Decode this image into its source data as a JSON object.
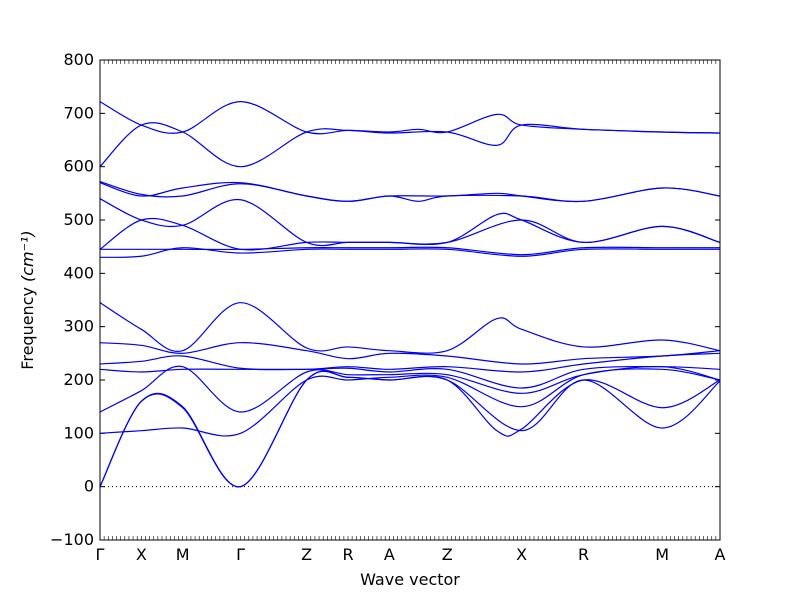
{
  "chart_data": {
    "type": "line",
    "title": "",
    "xlabel": "Wave vector",
    "ylabel": "Frequency",
    "ylabel_unit": "(cm⁻¹)",
    "ylim": [
      -100,
      800
    ],
    "yticks": [
      "−100",
      "0",
      "100",
      "200",
      "300",
      "400",
      "500",
      "600",
      "700",
      "800"
    ],
    "x_path": [
      {
        "label": "Γ",
        "x": 0
      },
      {
        "label": "X",
        "x": 0.5
      },
      {
        "label": "M",
        "x": 1.0
      },
      {
        "label": "Γ",
        "x": 1.7
      },
      {
        "label": "Z",
        "x": 2.5
      },
      {
        "label": "R",
        "x": 3.0
      },
      {
        "label": "A",
        "x": 3.5
      },
      {
        "label": "Z",
        "x": 4.2
      },
      {
        "label": "X",
        "x": 5.1
      },
      {
        "label": "R",
        "x": 5.85
      },
      {
        "label": "M",
        "x": 6.8
      },
      {
        "label": "A",
        "x": 7.5
      }
    ],
    "zero_line": true,
    "band_color": "#0000ee",
    "series": [
      {
        "values": [
          [
            0,
            0
          ],
          [
            0.5,
            160
          ],
          [
            1.0,
            148
          ],
          [
            1.7,
            0
          ],
          [
            2.5,
            200
          ],
          [
            3.0,
            205
          ],
          [
            3.5,
            200
          ],
          [
            4.2,
            200
          ],
          [
            5.1,
            105
          ],
          [
            5.85,
            200
          ],
          [
            6.8,
            110
          ],
          [
            7.5,
            198
          ]
        ]
      },
      {
        "values": [
          [
            0,
            0
          ],
          [
            0.5,
            160
          ],
          [
            1.0,
            150
          ],
          [
            1.7,
            0
          ],
          [
            2.5,
            200
          ],
          [
            3.0,
            205
          ],
          [
            3.5,
            200
          ],
          [
            4.2,
            200
          ],
          [
            4.8,
            105
          ],
          [
            5.1,
            108
          ],
          [
            5.85,
            200
          ],
          [
            6.8,
            148
          ],
          [
            7.5,
            200
          ]
        ]
      },
      {
        "values": [
          [
            0,
            100
          ],
          [
            0.5,
            105
          ],
          [
            1.0,
            110
          ],
          [
            1.7,
            100
          ],
          [
            2.5,
            200
          ],
          [
            3.0,
            200
          ],
          [
            3.5,
            205
          ],
          [
            4.2,
            205
          ],
          [
            5.1,
            150
          ],
          [
            5.85,
            210
          ],
          [
            6.8,
            220
          ],
          [
            7.5,
            200
          ]
        ]
      },
      {
        "values": [
          [
            0,
            140
          ],
          [
            0.5,
            180
          ],
          [
            1.0,
            225
          ],
          [
            1.7,
            140
          ],
          [
            2.5,
            215
          ],
          [
            3.0,
            210
          ],
          [
            3.5,
            210
          ],
          [
            4.2,
            210
          ],
          [
            5.1,
            175
          ],
          [
            5.85,
            210
          ],
          [
            6.8,
            225
          ],
          [
            7.5,
            200
          ]
        ]
      },
      {
        "values": [
          [
            0,
            220
          ],
          [
            0.5,
            215
          ],
          [
            1.0,
            220
          ],
          [
            1.7,
            220
          ],
          [
            2.5,
            220
          ],
          [
            3.0,
            222
          ],
          [
            3.5,
            215
          ],
          [
            4.2,
            220
          ],
          [
            5.1,
            185
          ],
          [
            5.85,
            220
          ],
          [
            6.8,
            225
          ],
          [
            7.5,
            220
          ]
        ]
      },
      {
        "values": [
          [
            0,
            230
          ],
          [
            0.5,
            235
          ],
          [
            1.0,
            245
          ],
          [
            1.7,
            222
          ],
          [
            2.5,
            220
          ],
          [
            3.0,
            225
          ],
          [
            3.5,
            220
          ],
          [
            4.2,
            225
          ],
          [
            5.1,
            215
          ],
          [
            5.85,
            230
          ],
          [
            6.8,
            245
          ],
          [
            7.5,
            250
          ]
        ]
      },
      {
        "values": [
          [
            0,
            270
          ],
          [
            0.5,
            265
          ],
          [
            1.0,
            250
          ],
          [
            1.7,
            270
          ],
          [
            2.5,
            255
          ],
          [
            3.0,
            240
          ],
          [
            3.5,
            250
          ],
          [
            4.2,
            245
          ],
          [
            5.1,
            230
          ],
          [
            5.85,
            240
          ],
          [
            6.8,
            245
          ],
          [
            7.5,
            255
          ]
        ]
      },
      {
        "values": [
          [
            0,
            345
          ],
          [
            0.5,
            295
          ],
          [
            1.0,
            255
          ],
          [
            1.7,
            345
          ],
          [
            2.5,
            260
          ],
          [
            3.0,
            262
          ],
          [
            3.5,
            255
          ],
          [
            4.2,
            255
          ],
          [
            4.8,
            315
          ],
          [
            5.1,
            295
          ],
          [
            5.85,
            262
          ],
          [
            6.8,
            275
          ],
          [
            7.5,
            255
          ]
        ]
      },
      {
        "values": [
          [
            0,
            430
          ],
          [
            0.5,
            432
          ],
          [
            1.0,
            448
          ],
          [
            1.7,
            438
          ],
          [
            2.5,
            445
          ],
          [
            3.0,
            445
          ],
          [
            3.5,
            445
          ],
          [
            4.2,
            445
          ],
          [
            5.1,
            432
          ],
          [
            5.85,
            445
          ],
          [
            6.8,
            445
          ],
          [
            7.5,
            445
          ]
        ]
      },
      {
        "values": [
          [
            0,
            445
          ],
          [
            0.5,
            445
          ],
          [
            1.0,
            445
          ],
          [
            1.7,
            445
          ],
          [
            2.5,
            448
          ],
          [
            3.0,
            448
          ],
          [
            3.5,
            448
          ],
          [
            4.2,
            448
          ],
          [
            5.1,
            435
          ],
          [
            5.85,
            448
          ],
          [
            6.8,
            448
          ],
          [
            7.5,
            448
          ]
        ]
      },
      {
        "values": [
          [
            0,
            445
          ],
          [
            0.5,
            500
          ],
          [
            1.0,
            490
          ],
          [
            1.7,
            445
          ],
          [
            2.5,
            458
          ],
          [
            3.0,
            458
          ],
          [
            3.5,
            458
          ],
          [
            4.2,
            458
          ],
          [
            5.1,
            500
          ],
          [
            5.85,
            458
          ],
          [
            6.8,
            488
          ],
          [
            7.5,
            458
          ]
        ]
      },
      {
        "values": [
          [
            0,
            540
          ],
          [
            0.5,
            500
          ],
          [
            1.0,
            490
          ],
          [
            1.7,
            538
          ],
          [
            2.5,
            458
          ],
          [
            3.0,
            458
          ],
          [
            3.5,
            458
          ],
          [
            4.2,
            458
          ],
          [
            4.8,
            510
          ],
          [
            5.1,
            500
          ],
          [
            5.85,
            458
          ],
          [
            6.8,
            488
          ],
          [
            7.5,
            458
          ]
        ]
      },
      {
        "values": [
          [
            0,
            570
          ],
          [
            0.5,
            545
          ],
          [
            1.0,
            560
          ],
          [
            1.7,
            570
          ],
          [
            2.5,
            545
          ],
          [
            3.0,
            535
          ],
          [
            3.5,
            545
          ],
          [
            4.2,
            545
          ],
          [
            4.8,
            550
          ],
          [
            5.1,
            545
          ],
          [
            5.85,
            535
          ],
          [
            6.8,
            560
          ],
          [
            7.5,
            545
          ]
        ]
      },
      {
        "values": [
          [
            0,
            572
          ],
          [
            0.5,
            548
          ],
          [
            1.0,
            545
          ],
          [
            1.7,
            568
          ],
          [
            2.5,
            545
          ],
          [
            3.0,
            535
          ],
          [
            3.5,
            545
          ],
          [
            3.85,
            535
          ],
          [
            4.2,
            545
          ],
          [
            5.1,
            545
          ],
          [
            5.85,
            535
          ],
          [
            6.8,
            560
          ],
          [
            7.5,
            545
          ]
        ]
      },
      {
        "values": [
          [
            0,
            600
          ],
          [
            0.5,
            678
          ],
          [
            1.0,
            665
          ],
          [
            1.7,
            600
          ],
          [
            2.5,
            665
          ],
          [
            3.0,
            668
          ],
          [
            3.5,
            663
          ],
          [
            4.2,
            665
          ],
          [
            4.8,
            640
          ],
          [
            5.1,
            678
          ],
          [
            5.85,
            670
          ],
          [
            6.8,
            665
          ],
          [
            7.5,
            663
          ]
        ]
      },
      {
        "values": [
          [
            0,
            722
          ],
          [
            0.5,
            678
          ],
          [
            1.0,
            665
          ],
          [
            1.7,
            722
          ],
          [
            2.5,
            665
          ],
          [
            3.0,
            668
          ],
          [
            3.5,
            665
          ],
          [
            3.85,
            670
          ],
          [
            4.2,
            665
          ],
          [
            4.8,
            698
          ],
          [
            5.1,
            678
          ],
          [
            5.85,
            670
          ],
          [
            6.8,
            665
          ],
          [
            7.5,
            663
          ]
        ]
      }
    ]
  }
}
